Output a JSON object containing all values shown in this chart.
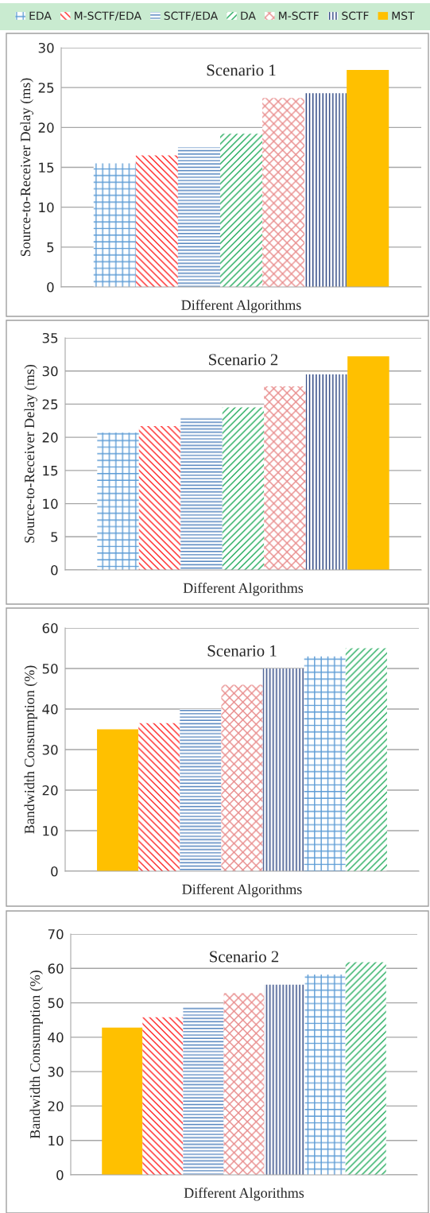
{
  "chart_data": [
    {
      "type": "bar",
      "title": "Scenario 1",
      "xlabel": "Different Algorithms",
      "ylabel": "Source-to-Receiver Delay (ms)",
      "categories": [
        null
      ],
      "ylim": [
        0,
        30
      ],
      "yticks": [
        0,
        5,
        10,
        15,
        20,
        25,
        30
      ],
      "grid": "y",
      "legend": "top",
      "series": [
        {
          "name": "EDA",
          "color": "#5b9bd5",
          "values": [
            15.5
          ]
        },
        {
          "name": "M-SCTF/EDA",
          "color": "#ff2020",
          "values": [
            16.5
          ]
        },
        {
          "name": "SCTF/EDA",
          "color": "#4f81bd",
          "values": [
            17.5
          ]
        },
        {
          "name": "DA",
          "color": "#1faa5a",
          "values": [
            19.2
          ]
        },
        {
          "name": "M-SCTF",
          "color": "#e88a8a",
          "values": [
            23.7
          ]
        },
        {
          "name": "SCTF",
          "color": "#1f3a7a",
          "values": [
            24.3
          ]
        },
        {
          "name": "MST",
          "color": "#ffc000",
          "values": [
            27.2
          ]
        }
      ]
    },
    {
      "type": "bar",
      "title": "Scenario 2",
      "xlabel": "Different Algorithms",
      "ylabel": "Source-to-Receiver Delay (ms)",
      "categories": [
        null
      ],
      "ylim": [
        0,
        35
      ],
      "yticks": [
        0,
        5,
        10,
        15,
        20,
        25,
        30,
        35
      ],
      "grid": "y",
      "series": [
        {
          "color": "#5b9bd5",
          "values": [
            20.7
          ]
        },
        {
          "color": "#ff2020",
          "values": [
            21.7
          ]
        },
        {
          "color": "#4f81bd",
          "values": [
            23.1
          ]
        },
        {
          "color": "#1faa5a",
          "values": [
            24.5
          ]
        },
        {
          "color": "#e88a8a",
          "values": [
            27.7
          ]
        },
        {
          "color": "#1f3a7a",
          "values": [
            29.5
          ]
        },
        {
          "color": "#ffc000",
          "values": [
            32.2
          ]
        }
      ]
    },
    {
      "type": "bar",
      "title": "Scenario 1",
      "xlabel": "Different Algorithms",
      "ylabel": "Bandwidth Consumption (%)",
      "categories": [
        null
      ],
      "ylim": [
        0,
        60
      ],
      "yticks": [
        0,
        10,
        20,
        30,
        40,
        50,
        60
      ],
      "grid": "y",
      "series": [
        {
          "color": "#ffc000",
          "values": [
            35
          ]
        },
        {
          "color": "#ff2020",
          "values": [
            36.5
          ]
        },
        {
          "color": "#4f81bd",
          "values": [
            40
          ]
        },
        {
          "color": "#e88a8a",
          "values": [
            46
          ]
        },
        {
          "color": "#1f3a7a",
          "values": [
            50
          ]
        },
        {
          "color": "#5b9bd5",
          "values": [
            53
          ]
        },
        {
          "color": "#1faa5a",
          "values": [
            55
          ]
        }
      ]
    },
    {
      "type": "bar",
      "title": "Scenario 2",
      "xlabel": "Different Algorithms",
      "ylabel": "Bandwidth Consumption (%)",
      "categories": [
        null
      ],
      "ylim": [
        0,
        70
      ],
      "yticks": [
        0,
        10,
        20,
        30,
        40,
        50,
        60,
        70
      ],
      "grid": "y",
      "series": [
        {
          "color": "#ffc000",
          "values": [
            42.8
          ]
        },
        {
          "color": "#ff2020",
          "values": [
            45.8
          ]
        },
        {
          "color": "#4f81bd",
          "values": [
            48.8
          ]
        },
        {
          "color": "#e88a8a",
          "values": [
            52.8
          ]
        },
        {
          "color": "#1f3a7a",
          "values": [
            55.3
          ]
        },
        {
          "color": "#5b9bd5",
          "values": [
            58.2
          ]
        },
        {
          "color": "#1faa5a",
          "values": [
            61.8
          ]
        }
      ]
    }
  ]
}
